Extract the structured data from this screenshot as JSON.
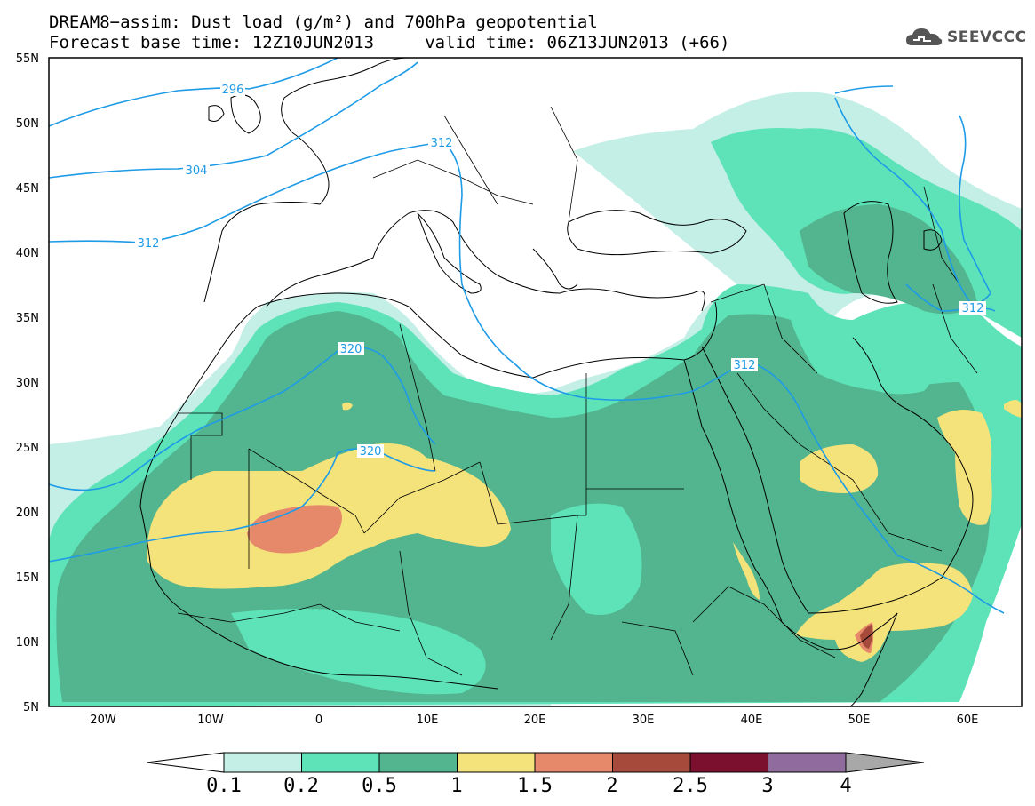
{
  "title_line1": "DREAM8−assim: Dust load (g/m²) and 700hPa geopotential",
  "title_line2": "Forecast base time: 12Z10JUN2013     valid time: 06Z13JUN2013 (+66)",
  "logo_text": "SEEVCCC",
  "lat_labels": [
    "55N",
    "50N",
    "45N",
    "40N",
    "35N",
    "30N",
    "25N",
    "20N",
    "15N",
    "10N",
    "5N"
  ],
  "lon_labels": [
    "20W",
    "10W",
    "0",
    "10E",
    "20E",
    "30E",
    "40E",
    "50E",
    "60E"
  ],
  "contour_labels": [
    "296",
    "304",
    "312",
    "312",
    "312",
    "312",
    "320",
    "320"
  ],
  "colorbar": {
    "labels": [
      "0.1",
      "0.2",
      "0.5",
      "1",
      "1.5",
      "2",
      "2.5",
      "3",
      "4"
    ],
    "colors": [
      "#c4efe6",
      "#5ee3b8",
      "#52b58f",
      "#f4e27a",
      "#e6886a",
      "#a64b3c",
      "#7a0f2e",
      "#8f6b9e",
      "#a8a8a8"
    ]
  },
  "colors": {
    "dust_01": "#c4efe6",
    "dust_02": "#5ee3b8",
    "dust_05": "#52b58f",
    "dust_1": "#f4e27a",
    "dust_15": "#e6886a",
    "dust_2": "#a64b3c",
    "contour": "#1e9be6"
  }
}
